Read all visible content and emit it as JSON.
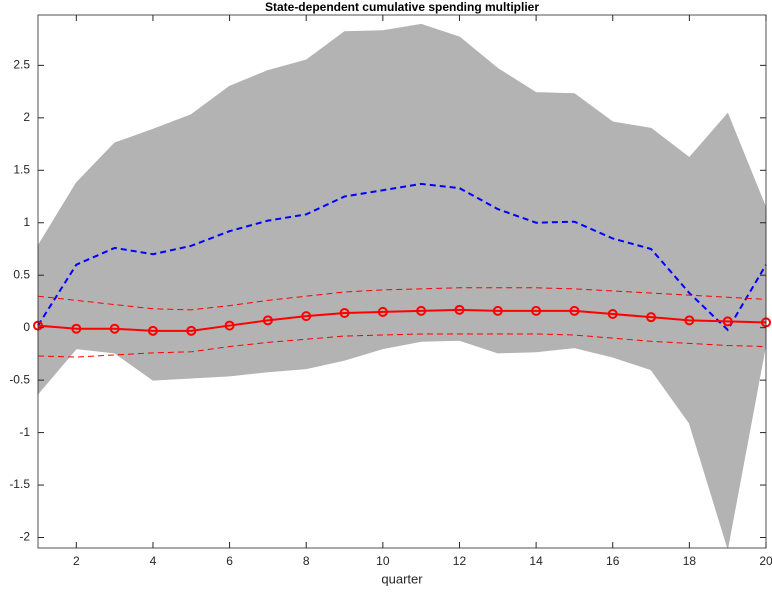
{
  "chart_data": {
    "type": "line",
    "title": "State-dependent cumulative spending multiplier",
    "xlabel": "quarter",
    "x": [
      1,
      2,
      3,
      4,
      5,
      6,
      7,
      8,
      9,
      10,
      11,
      12,
      13,
      14,
      15,
      16,
      17,
      18,
      19,
      20
    ],
    "xlim": [
      1,
      20
    ],
    "xticks": [
      2,
      4,
      6,
      8,
      10,
      12,
      14,
      16,
      18,
      20
    ],
    "ylim": [
      -2.1,
      2.98
    ],
    "yticks": [
      -2,
      -1.5,
      -1,
      -0.5,
      0,
      0.5,
      1,
      1.5,
      2,
      2.5
    ],
    "band": {
      "color": "#b3b3b3",
      "upper": [
        0.78,
        1.38,
        1.76,
        1.89,
        2.03,
        2.3,
        2.45,
        2.55,
        2.82,
        2.83,
        2.89,
        2.77,
        2.47,
        2.24,
        2.23,
        1.96,
        1.9,
        1.62,
        2.04,
        1.14
      ],
      "lower": [
        -0.63,
        -0.2,
        -0.24,
        -0.5,
        -0.48,
        -0.46,
        -0.42,
        -0.39,
        -0.31,
        -0.2,
        -0.13,
        -0.12,
        -0.24,
        -0.23,
        -0.19,
        -0.28,
        -0.4,
        -0.91,
        -2.1,
        -0.15
      ]
    },
    "series": [
      {
        "color": "#0000ff",
        "dash": "dashed",
        "width": 2,
        "values": [
          0.02,
          0.6,
          0.76,
          0.7,
          0.78,
          0.92,
          1.02,
          1.08,
          1.25,
          1.31,
          1.37,
          1.33,
          1.13,
          1.0,
          1.01,
          0.85,
          0.75,
          0.33,
          -0.02,
          0.6
        ]
      },
      {
        "color": "#ff0000",
        "dash": "dashed",
        "width": 1,
        "values": [
          0.3,
          0.26,
          0.22,
          0.18,
          0.17,
          0.21,
          0.26,
          0.3,
          0.34,
          0.36,
          0.37,
          0.38,
          0.38,
          0.38,
          0.37,
          0.35,
          0.33,
          0.31,
          0.29,
          0.27
        ]
      },
      {
        "color": "#ff0000",
        "dash": "dashed",
        "width": 1,
        "values": [
          -0.27,
          -0.28,
          -0.26,
          -0.24,
          -0.23,
          -0.18,
          -0.14,
          -0.11,
          -0.08,
          -0.07,
          -0.06,
          -0.06,
          -0.06,
          -0.06,
          -0.07,
          -0.1,
          -0.13,
          -0.15,
          -0.17,
          -0.18
        ]
      },
      {
        "color": "#ff0000",
        "dash": "solid",
        "width": 2,
        "marker": "circle",
        "values": [
          0.02,
          -0.01,
          -0.01,
          -0.03,
          -0.03,
          0.02,
          0.07,
          0.11,
          0.14,
          0.15,
          0.16,
          0.17,
          0.16,
          0.16,
          0.16,
          0.13,
          0.1,
          0.07,
          0.06,
          0.05
        ]
      }
    ]
  }
}
